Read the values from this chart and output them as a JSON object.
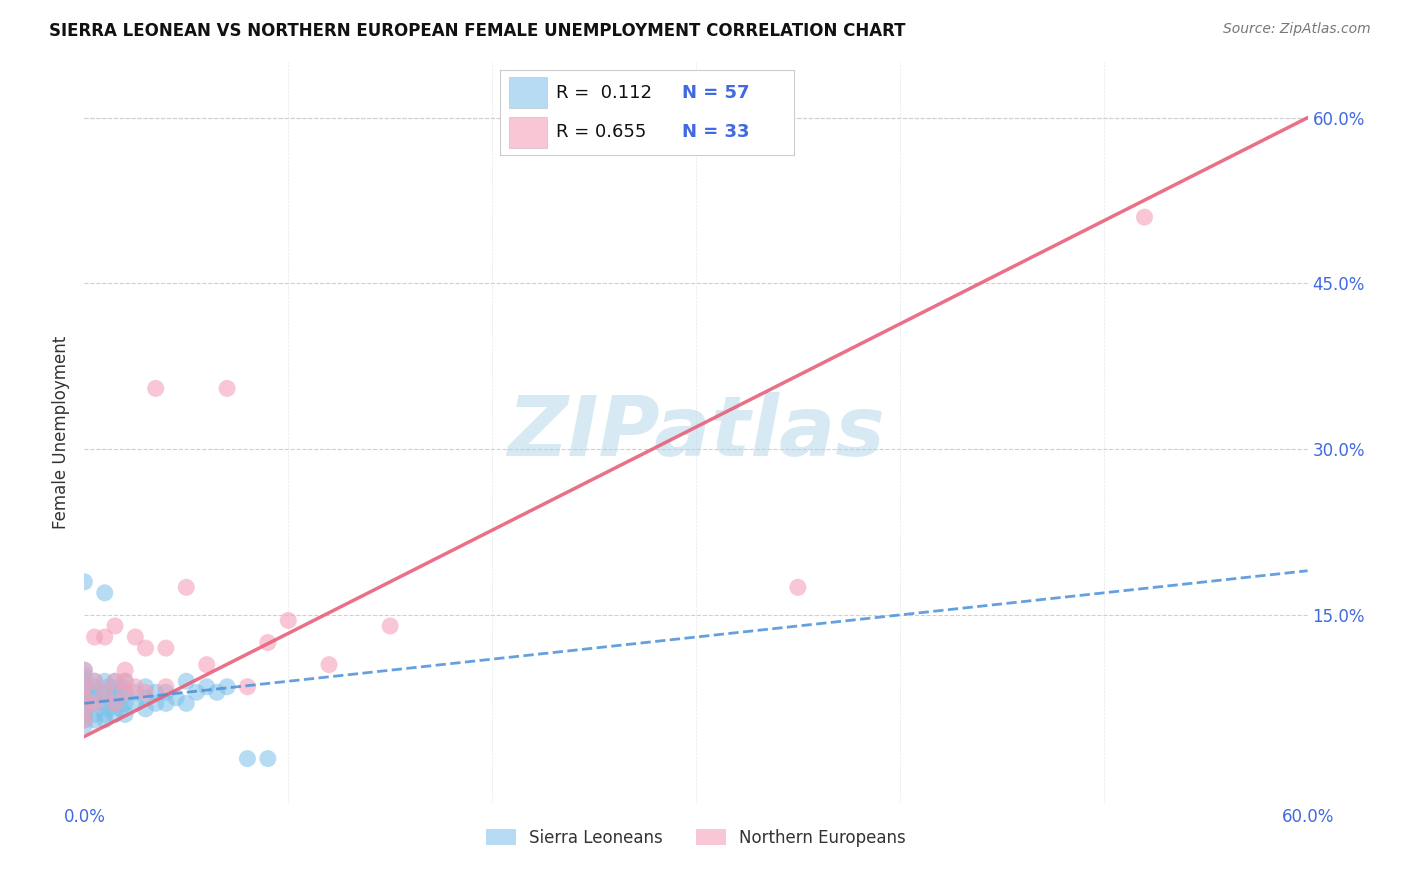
{
  "title": "SIERRA LEONEAN VS NORTHERN EUROPEAN FEMALE UNEMPLOYMENT CORRELATION CHART",
  "source": "Source: ZipAtlas.com",
  "ylabel": "Female Unemployment",
  "xlim": [
    0.0,
    0.6
  ],
  "ylim": [
    -0.02,
    0.65
  ],
  "yticks_right": [
    0.15,
    0.3,
    0.45,
    0.6
  ],
  "ytick_labels_right": [
    "15.0%",
    "30.0%",
    "45.0%",
    "60.0%"
  ],
  "xtick_positions": [
    0.0,
    0.6
  ],
  "xtick_labels": [
    "0.0%",
    "60.0%"
  ],
  "watermark": "ZIPatlas",
  "watermark_color": "#b0d4e8",
  "background_color": "#ffffff",
  "grid_color": "#d0d0d0",
  "sierra_color": "#7bbfe8",
  "northern_color": "#f4a0b8",
  "sierra_R": 0.112,
  "sierra_N": 57,
  "northern_R": 0.655,
  "northern_N": 33,
  "sierra_line_color": "#4a90d9",
  "northern_line_color": "#e8607a",
  "sierra_points_x": [
    0.0,
    0.0,
    0.0,
    0.0,
    0.0,
    0.0,
    0.0,
    0.0,
    0.0,
    0.0,
    0.0,
    0.0,
    0.005,
    0.005,
    0.005,
    0.005,
    0.005,
    0.005,
    0.005,
    0.01,
    0.01,
    0.01,
    0.01,
    0.01,
    0.01,
    0.012,
    0.012,
    0.012,
    0.015,
    0.015,
    0.015,
    0.015,
    0.018,
    0.018,
    0.018,
    0.02,
    0.02,
    0.02,
    0.02,
    0.025,
    0.025,
    0.03,
    0.03,
    0.03,
    0.035,
    0.035,
    0.04,
    0.04,
    0.045,
    0.05,
    0.05,
    0.055,
    0.06,
    0.065,
    0.07,
    0.08,
    0.09
  ],
  "sierra_points_y": [
    0.05,
    0.055,
    0.06,
    0.065,
    0.07,
    0.075,
    0.08,
    0.085,
    0.09,
    0.095,
    0.1,
    0.18,
    0.055,
    0.06,
    0.07,
    0.075,
    0.08,
    0.085,
    0.09,
    0.055,
    0.06,
    0.07,
    0.08,
    0.09,
    0.17,
    0.065,
    0.075,
    0.085,
    0.06,
    0.07,
    0.08,
    0.09,
    0.065,
    0.075,
    0.085,
    0.06,
    0.07,
    0.08,
    0.09,
    0.07,
    0.08,
    0.065,
    0.075,
    0.085,
    0.07,
    0.08,
    0.07,
    0.08,
    0.075,
    0.07,
    0.09,
    0.08,
    0.085,
    0.08,
    0.085,
    0.02,
    0.02
  ],
  "northern_points_x": [
    0.0,
    0.0,
    0.0,
    0.0,
    0.0,
    0.005,
    0.005,
    0.005,
    0.01,
    0.01,
    0.015,
    0.015,
    0.015,
    0.02,
    0.02,
    0.02,
    0.025,
    0.025,
    0.03,
    0.03,
    0.035,
    0.04,
    0.04,
    0.05,
    0.06,
    0.07,
    0.08,
    0.09,
    0.1,
    0.12,
    0.15,
    0.35,
    0.52
  ],
  "northern_points_y": [
    0.055,
    0.065,
    0.075,
    0.085,
    0.1,
    0.07,
    0.09,
    0.13,
    0.08,
    0.13,
    0.07,
    0.09,
    0.14,
    0.08,
    0.09,
    0.1,
    0.085,
    0.13,
    0.08,
    0.12,
    0.355,
    0.085,
    0.12,
    0.175,
    0.105,
    0.355,
    0.085,
    0.125,
    0.145,
    0.105,
    0.14,
    0.175,
    0.51
  ],
  "legend_sierra_label": "Sierra Leoneans",
  "legend_northern_label": "Northern Europeans",
  "northern_line_x0": 0.0,
  "northern_line_y0": 0.04,
  "northern_line_x1": 0.6,
  "northern_line_y1": 0.6,
  "sierra_line_x0": 0.0,
  "sierra_line_y0": 0.07,
  "sierra_line_x1": 0.6,
  "sierra_line_y1": 0.19
}
